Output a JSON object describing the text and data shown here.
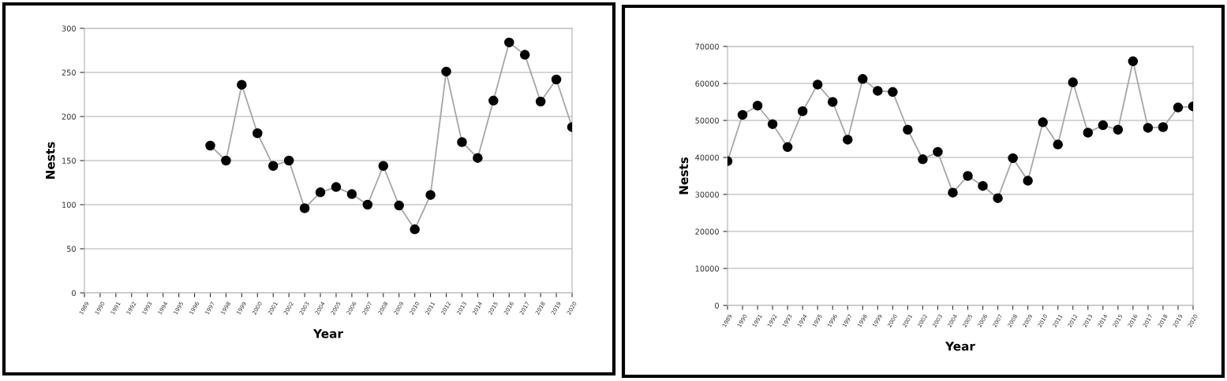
{
  "chart_data": [
    {
      "type": "line",
      "xlabel": "Year",
      "ylabel": "Nests",
      "categories": [
        "1989",
        "1990",
        "1991",
        "1992",
        "1993",
        "1994",
        "1995",
        "1996",
        "1997",
        "1998",
        "1999",
        "2000",
        "2001",
        "2002",
        "2003",
        "2004",
        "2005",
        "2006",
        "2007",
        "2008",
        "2009",
        "2010",
        "2011",
        "2012",
        "2013",
        "2014",
        "2015",
        "2016",
        "2017",
        "2018",
        "2019",
        "2020"
      ],
      "series": [
        {
          "color": "#000000",
          "values": [
            null,
            null,
            null,
            null,
            null,
            null,
            null,
            null,
            167,
            150,
            236,
            181,
            144,
            150,
            96,
            114,
            120,
            112,
            100,
            144,
            99,
            72,
            111,
            251,
            171,
            153,
            218,
            284,
            270,
            217,
            242,
            188
          ]
        }
      ],
      "ylim": [
        0,
        300
      ],
      "yticks": [
        0,
        50,
        100,
        150,
        200,
        250,
        300
      ],
      "grid": "y",
      "marker": "circle",
      "line_style": "solid"
    },
    {
      "type": "line",
      "xlabel": "Year",
      "ylabel": "Nests",
      "categories": [
        "1989",
        "1990",
        "1991",
        "1992",
        "1993",
        "1994",
        "1995",
        "1996",
        "1997",
        "1998",
        "1999",
        "2000",
        "2001",
        "2002",
        "2003",
        "2004",
        "2005",
        "2006",
        "2007",
        "2008",
        "2009",
        "2010",
        "2011",
        "2012",
        "2013",
        "2014",
        "2015",
        "2016",
        "2017",
        "2018",
        "2019",
        "2020"
      ],
      "series": [
        {
          "color": "#000000",
          "values": [
            39000,
            51500,
            54000,
            49000,
            42800,
            52500,
            59700,
            55000,
            44800,
            61200,
            58000,
            57700,
            47500,
            39500,
            41500,
            30500,
            35000,
            32300,
            29000,
            39800,
            33700,
            49500,
            43500,
            60300,
            46700,
            48700,
            47500,
            66000,
            48000,
            48200,
            53500,
            53800
          ]
        }
      ],
      "ylim": [
        0,
        70000
      ],
      "yticks": [
        0,
        10000,
        20000,
        30000,
        40000,
        50000,
        60000,
        70000
      ],
      "grid": "y",
      "marker": "circle",
      "line_style": "solid"
    }
  ]
}
